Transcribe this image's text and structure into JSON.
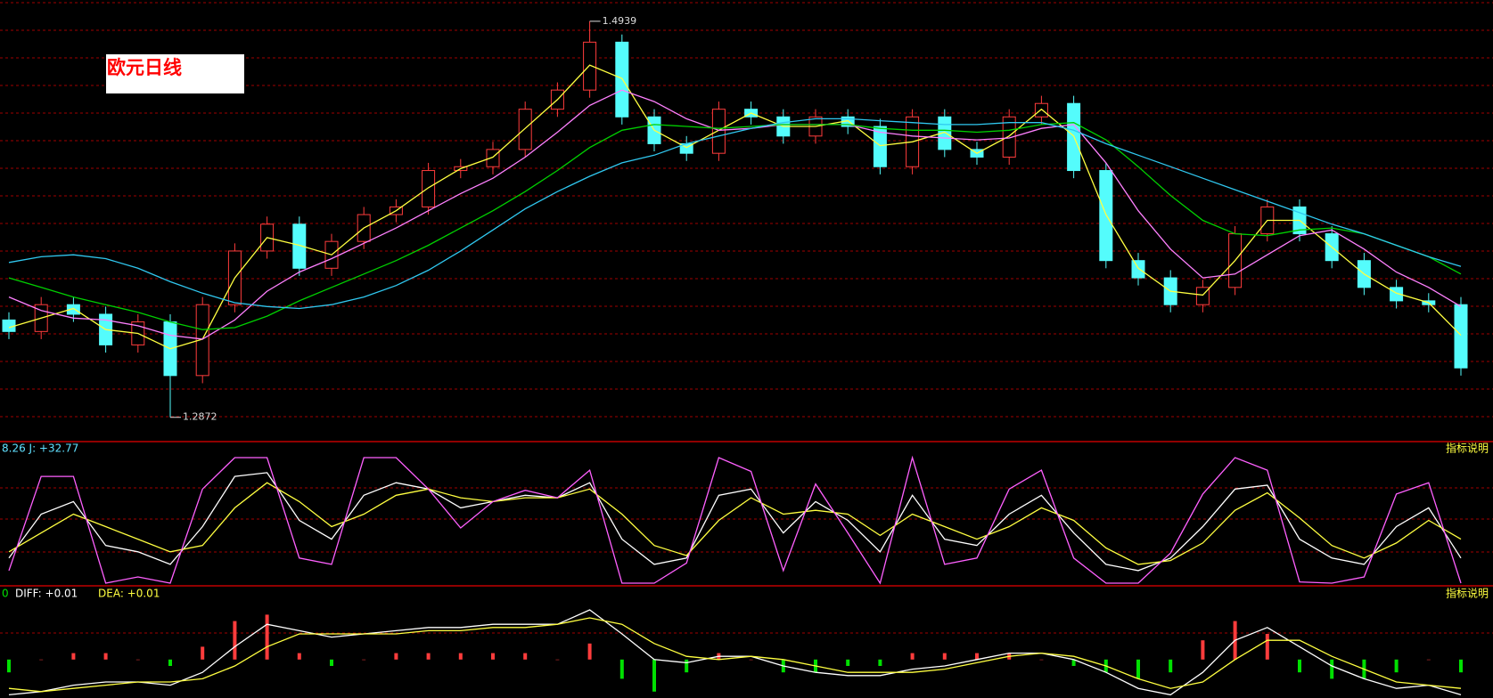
{
  "chart_data": [
    {
      "type": "candlestick",
      "title": "欧元日线",
      "ylim": [
        1.275,
        1.505
      ],
      "annotations": [
        "1.4939",
        "1.2872"
      ],
      "up_color": "#ff3c3c",
      "down_color": "#54fcfc",
      "open": [
        1.338,
        1.332,
        1.346,
        1.341,
        1.325,
        1.337,
        1.309,
        1.346,
        1.374,
        1.388,
        1.365,
        1.379,
        1.393,
        1.397,
        1.416,
        1.418,
        1.427,
        1.448,
        1.458,
        1.483,
        1.444,
        1.43,
        1.425,
        1.448,
        1.444,
        1.434,
        1.444,
        1.439,
        1.418,
        1.444,
        1.427,
        1.423,
        1.444,
        1.451,
        1.416,
        1.369,
        1.36,
        1.346,
        1.355,
        1.383,
        1.397,
        1.383,
        1.369,
        1.355,
        1.348,
        1.346
      ],
      "high": [
        1.342,
        1.35,
        1.35,
        1.345,
        1.341,
        1.341,
        1.35,
        1.378,
        1.392,
        1.392,
        1.383,
        1.397,
        1.401,
        1.42,
        1.422,
        1.431,
        1.452,
        1.462,
        1.4939,
        1.487,
        1.448,
        1.434,
        1.452,
        1.452,
        1.448,
        1.448,
        1.448,
        1.443,
        1.448,
        1.448,
        1.431,
        1.448,
        1.455,
        1.455,
        1.42,
        1.373,
        1.364,
        1.359,
        1.387,
        1.401,
        1.401,
        1.387,
        1.373,
        1.359,
        1.352,
        1.35
      ],
      "low": [
        1.328,
        1.328,
        1.337,
        1.321,
        1.321,
        1.2872,
        1.305,
        1.342,
        1.37,
        1.361,
        1.361,
        1.375,
        1.389,
        1.393,
        1.412,
        1.414,
        1.423,
        1.444,
        1.454,
        1.44,
        1.426,
        1.421,
        1.421,
        1.44,
        1.43,
        1.43,
        1.435,
        1.414,
        1.414,
        1.423,
        1.419,
        1.419,
        1.44,
        1.412,
        1.365,
        1.356,
        1.342,
        1.342,
        1.351,
        1.379,
        1.379,
        1.365,
        1.351,
        1.344,
        1.342,
        1.309
      ],
      "close": [
        1.332,
        1.346,
        1.341,
        1.325,
        1.337,
        1.309,
        1.346,
        1.374,
        1.388,
        1.365,
        1.379,
        1.393,
        1.397,
        1.416,
        1.418,
        1.427,
        1.448,
        1.458,
        1.483,
        1.444,
        1.43,
        1.425,
        1.448,
        1.444,
        1.434,
        1.444,
        1.439,
        1.418,
        1.444,
        1.427,
        1.423,
        1.444,
        1.451,
        1.416,
        1.369,
        1.36,
        1.346,
        1.355,
        1.383,
        1.397,
        1.383,
        1.369,
        1.355,
        1.348,
        1.346,
        1.313
      ],
      "series": [
        {
          "color": "#ffff40",
          "values": [
            1.334,
            1.339,
            1.344,
            1.333,
            1.331,
            1.323,
            1.328,
            1.36,
            1.381,
            1.377,
            1.372,
            1.386,
            1.395,
            1.407,
            1.417,
            1.423,
            1.438,
            1.453,
            1.471,
            1.464,
            1.437,
            1.428,
            1.437,
            1.446,
            1.439,
            1.439,
            1.442,
            1.429,
            1.431,
            1.436,
            1.425,
            1.434,
            1.448,
            1.434,
            1.393,
            1.365,
            1.353,
            1.351,
            1.369,
            1.39,
            1.39,
            1.376,
            1.362,
            1.352,
            1.347,
            1.33
          ]
        },
        {
          "color": "#ff80ff",
          "values": [
            1.35,
            1.343,
            1.339,
            1.338,
            1.335,
            1.33,
            1.328,
            1.338,
            1.353,
            1.363,
            1.37,
            1.378,
            1.386,
            1.395,
            1.404,
            1.412,
            1.423,
            1.436,
            1.45,
            1.458,
            1.452,
            1.443,
            1.437,
            1.438,
            1.44,
            1.44,
            1.44,
            1.436,
            1.434,
            1.433,
            1.432,
            1.433,
            1.438,
            1.44,
            1.42,
            1.395,
            1.375,
            1.36,
            1.362,
            1.372,
            1.382,
            1.385,
            1.375,
            1.363,
            1.355,
            1.345
          ]
        },
        {
          "color": "#00d000",
          "values": [
            1.36,
            1.355,
            1.35,
            1.346,
            1.342,
            1.337,
            1.333,
            1.334,
            1.34,
            1.348,
            1.355,
            1.362,
            1.369,
            1.377,
            1.386,
            1.395,
            1.405,
            1.416,
            1.428,
            1.437,
            1.44,
            1.439,
            1.438,
            1.439,
            1.44,
            1.44,
            1.44,
            1.438,
            1.437,
            1.437,
            1.436,
            1.437,
            1.44,
            1.441,
            1.432,
            1.418,
            1.403,
            1.39,
            1.383,
            1.382,
            1.385,
            1.386,
            1.383,
            1.377,
            1.371,
            1.362
          ]
        },
        {
          "color": "#30c8f0",
          "values": [
            1.368,
            1.371,
            1.372,
            1.37,
            1.365,
            1.358,
            1.352,
            1.347,
            1.345,
            1.344,
            1.346,
            1.35,
            1.356,
            1.364,
            1.374,
            1.385,
            1.396,
            1.405,
            1.413,
            1.42,
            1.424,
            1.43,
            1.434,
            1.438,
            1.441,
            1.443,
            1.443,
            1.442,
            1.441,
            1.44,
            1.44,
            1.441,
            1.441,
            1.437,
            1.43,
            1.424,
            1.418,
            1.412,
            1.406,
            1.4,
            1.394,
            1.388,
            1.383,
            1.377,
            1.371,
            1.366
          ]
        }
      ]
    },
    {
      "type": "line",
      "label": "8.26 J: +32.77",
      "help": "指标说明",
      "ylim": [
        0,
        100
      ],
      "series": [
        {
          "color": "#ffffff",
          "values": [
            20,
            55,
            65,
            30,
            25,
            15,
            45,
            85,
            88,
            50,
            35,
            70,
            80,
            75,
            60,
            65,
            70,
            68,
            80,
            35,
            15,
            20,
            70,
            75,
            40,
            65,
            50,
            25,
            70,
            35,
            30,
            55,
            70,
            40,
            15,
            10,
            20,
            45,
            75,
            78,
            35,
            20,
            15,
            45,
            60,
            20
          ]
        },
        {
          "color": "#ffff40",
          "values": [
            25,
            40,
            55,
            45,
            35,
            25,
            30,
            60,
            80,
            65,
            45,
            55,
            70,
            75,
            68,
            65,
            68,
            68,
            75,
            55,
            30,
            22,
            50,
            68,
            55,
            58,
            55,
            38,
            55,
            45,
            35,
            45,
            60,
            50,
            28,
            15,
            18,
            32,
            58,
            72,
            52,
            30,
            20,
            32,
            50,
            35
          ]
        },
        {
          "color": "#ff60ff",
          "values": [
            10,
            85,
            85,
            0,
            5,
            0,
            75,
            100,
            100,
            20,
            15,
            100,
            100,
            75,
            44,
            65,
            74,
            68,
            90,
            0,
            0,
            16,
            100,
            89,
            10,
            79,
            40,
            0,
            100,
            15,
            20,
            75,
            90,
            20,
            0,
            0,
            24,
            71,
            100,
            90,
            1,
            0,
            5,
            71,
            80,
            0
          ]
        }
      ]
    },
    {
      "type": "bar",
      "label_zero": "0",
      "label_diff": "DIFF: +0.01",
      "label_dea": "DEA: +0.01",
      "help": "指标说明",
      "ylim": [
        -0.012,
        0.018
      ],
      "up_color": "#ff3c3c",
      "down_color": "#00e000",
      "values": [
        -0.004,
        0.0,
        0.002,
        0.002,
        0.0,
        -0.002,
        0.004,
        0.012,
        0.014,
        0.002,
        -0.002,
        0.0,
        0.002,
        0.002,
        0.002,
        0.002,
        0.002,
        0.0,
        0.005,
        -0.006,
        -0.01,
        -0.004,
        0.002,
        0.0,
        -0.004,
        -0.004,
        -0.002,
        -0.002,
        0.002,
        0.002,
        0.002,
        0.002,
        0.0,
        -0.002,
        -0.004,
        -0.006,
        -0.004,
        0.006,
        0.012,
        0.008,
        -0.004,
        -0.006,
        -0.006,
        -0.004,
        0.0,
        -0.004
      ],
      "series": [
        {
          "color": "#ffffff",
          "values": [
            -0.011,
            -0.01,
            -0.008,
            -0.007,
            -0.007,
            -0.008,
            -0.004,
            0.004,
            0.011,
            0.009,
            0.007,
            0.008,
            0.009,
            0.01,
            0.01,
            0.011,
            0.011,
            0.011,
            0.0155,
            0.008,
            0.0,
            -0.001,
            0.001,
            0.001,
            -0.002,
            -0.004,
            -0.005,
            -0.005,
            -0.003,
            -0.002,
            0.0,
            0.002,
            0.002,
            0.0,
            -0.004,
            -0.009,
            -0.011,
            -0.004,
            0.006,
            0.01,
            0.004,
            -0.002,
            -0.006,
            -0.009,
            -0.008,
            -0.011
          ]
        },
        {
          "color": "#ffff40",
          "values": [
            -0.009,
            -0.01,
            -0.009,
            -0.008,
            -0.007,
            -0.007,
            -0.006,
            -0.002,
            0.004,
            0.008,
            0.008,
            0.008,
            0.008,
            0.009,
            0.009,
            0.01,
            0.01,
            0.011,
            0.013,
            0.011,
            0.005,
            0.001,
            0.0,
            0.001,
            0.0,
            -0.002,
            -0.004,
            -0.004,
            -0.004,
            -0.003,
            -0.001,
            0.001,
            0.002,
            0.001,
            -0.002,
            -0.006,
            -0.009,
            -0.007,
            0.0,
            0.006,
            0.006,
            0.001,
            -0.003,
            -0.007,
            -0.008,
            -0.009
          ]
        }
      ]
    }
  ]
}
